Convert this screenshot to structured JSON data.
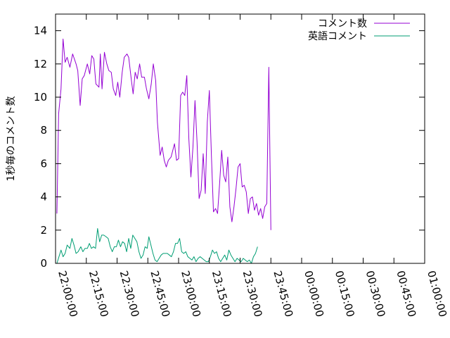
{
  "chart_data": {
    "type": "line",
    "title": "",
    "xlabel": "",
    "ylabel": "1秒毎のコメント数",
    "xlim": [
      "22:00:00",
      "01:00:00"
    ],
    "ylim": [
      0,
      15
    ],
    "x_ticks": [
      "22:00:00",
      "22:15:00",
      "22:30:00",
      "22:45:00",
      "23:00:00",
      "23:15:00",
      "23:30:00",
      "23:45:00",
      "00:00:00",
      "00:15:00",
      "00:30:00",
      "00:45:00",
      "01:00:00"
    ],
    "y_ticks": [
      0,
      2,
      4,
      6,
      8,
      10,
      12,
      14
    ],
    "grid": false,
    "legend_position": "top-right",
    "series": [
      {
        "name": "コメント数",
        "color": "#9400d3",
        "points": [
          [
            "22:00:40",
            3.0
          ],
          [
            "22:01:30",
            9.0
          ],
          [
            "22:02:40",
            10.5
          ],
          [
            "22:03:40",
            13.5
          ],
          [
            "22:04:40",
            12.1
          ],
          [
            "22:05:40",
            12.4
          ],
          [
            "22:07:00",
            11.8
          ],
          [
            "22:08:20",
            12.6
          ],
          [
            "22:10:00",
            12.0
          ],
          [
            "22:10:50",
            11.6
          ],
          [
            "22:12:00",
            9.5
          ],
          [
            "22:13:00",
            11.1
          ],
          [
            "22:14:00",
            11.3
          ],
          [
            "22:15:30",
            12.0
          ],
          [
            "22:16:40",
            11.4
          ],
          [
            "22:17:40",
            12.5
          ],
          [
            "22:18:40",
            12.3
          ],
          [
            "22:19:40",
            10.8
          ],
          [
            "22:21:10",
            10.6
          ],
          [
            "22:21:50",
            12.6
          ],
          [
            "22:22:40",
            10.5
          ],
          [
            "22:23:50",
            12.7
          ],
          [
            "22:25:00",
            12.0
          ],
          [
            "22:26:00",
            11.6
          ],
          [
            "22:27:10",
            11.5
          ],
          [
            "22:28:10",
            10.5
          ],
          [
            "22:29:20",
            10.1
          ],
          [
            "22:30:20",
            10.9
          ],
          [
            "22:31:20",
            10.0
          ],
          [
            "22:32:30",
            11.5
          ],
          [
            "22:33:30",
            12.4
          ],
          [
            "22:34:50",
            12.6
          ],
          [
            "22:35:40",
            12.4
          ],
          [
            "22:37:00",
            11.0
          ],
          [
            "22:37:50",
            10.2
          ],
          [
            "22:38:50",
            11.5
          ],
          [
            "22:39:50",
            11.1
          ],
          [
            "22:41:00",
            12.0
          ],
          [
            "22:42:00",
            11.2
          ],
          [
            "22:43:20",
            11.2
          ],
          [
            "22:44:20",
            10.5
          ],
          [
            "22:45:30",
            9.9
          ],
          [
            "22:46:40",
            10.8
          ],
          [
            "22:47:40",
            12.0
          ],
          [
            "22:48:50",
            11.0
          ],
          [
            "22:49:40",
            8.5
          ],
          [
            "22:51:00",
            6.5
          ],
          [
            "22:52:00",
            7.0
          ],
          [
            "22:53:00",
            6.2
          ],
          [
            "22:54:00",
            5.8
          ],
          [
            "22:55:00",
            6.2
          ],
          [
            "22:56:20",
            6.4
          ],
          [
            "22:58:00",
            7.2
          ],
          [
            "22:59:00",
            6.2
          ],
          [
            "23:00:00",
            6.3
          ],
          [
            "23:01:00",
            10.1
          ],
          [
            "23:02:00",
            10.3
          ],
          [
            "23:03:00",
            10.1
          ],
          [
            "23:04:00",
            11.3
          ],
          [
            "23:05:00",
            7.5
          ],
          [
            "23:06:00",
            5.2
          ],
          [
            "23:07:00",
            7.0
          ],
          [
            "23:08:00",
            9.8
          ],
          [
            "23:09:00",
            7.3
          ],
          [
            "23:10:00",
            3.9
          ],
          [
            "23:11:00",
            4.4
          ],
          [
            "23:12:00",
            6.6
          ],
          [
            "23:13:00",
            4.2
          ],
          [
            "23:14:00",
            8.5
          ],
          [
            "23:15:00",
            10.4
          ],
          [
            "23:16:00",
            6.5
          ],
          [
            "23:17:00",
            3.1
          ],
          [
            "23:18:00",
            3.3
          ],
          [
            "23:19:00",
            3.0
          ],
          [
            "23:20:00",
            4.8
          ],
          [
            "23:21:00",
            6.8
          ],
          [
            "23:22:00",
            5.3
          ],
          [
            "23:23:00",
            4.9
          ],
          [
            "23:24:00",
            6.4
          ],
          [
            "23:25:00",
            3.4
          ],
          [
            "23:26:00",
            2.5
          ],
          [
            "23:27:00",
            3.4
          ],
          [
            "23:28:00",
            4.5
          ],
          [
            "23:29:00",
            5.8
          ],
          [
            "23:30:00",
            6.0
          ],
          [
            "23:31:00",
            4.6
          ],
          [
            "23:32:00",
            4.7
          ],
          [
            "23:33:00",
            4.3
          ],
          [
            "23:34:00",
            3.0
          ],
          [
            "23:35:00",
            3.9
          ],
          [
            "23:36:00",
            4.0
          ],
          [
            "23:37:00",
            3.2
          ],
          [
            "23:38:00",
            3.6
          ],
          [
            "23:39:00",
            2.9
          ],
          [
            "23:40:00",
            3.3
          ],
          [
            "23:41:00",
            2.7
          ],
          [
            "23:42:00",
            3.4
          ],
          [
            "23:43:00",
            3.6
          ],
          [
            "23:44:00",
            11.8
          ],
          [
            "23:45:00",
            2.0
          ]
        ]
      },
      {
        "name": "英語コメント",
        "color": "#009e73",
        "points": [
          [
            "22:00:40",
            0.0
          ],
          [
            "22:01:40",
            0.4
          ],
          [
            "22:02:40",
            0.8
          ],
          [
            "22:03:40",
            0.4
          ],
          [
            "22:04:40",
            0.6
          ],
          [
            "22:05:40",
            1.1
          ],
          [
            "22:07:00",
            0.9
          ],
          [
            "22:08:00",
            1.5
          ],
          [
            "22:09:00",
            1.1
          ],
          [
            "22:10:00",
            0.6
          ],
          [
            "22:11:00",
            0.7
          ],
          [
            "22:12:20",
            1.0
          ],
          [
            "22:13:20",
            0.7
          ],
          [
            "22:14:20",
            0.9
          ],
          [
            "22:15:30",
            0.9
          ],
          [
            "22:16:30",
            1.2
          ],
          [
            "22:17:30",
            0.9
          ],
          [
            "22:18:30",
            1.0
          ],
          [
            "22:19:30",
            0.9
          ],
          [
            "22:20:30",
            2.1
          ],
          [
            "22:21:30",
            1.3
          ],
          [
            "22:22:30",
            1.7
          ],
          [
            "22:23:30",
            1.7
          ],
          [
            "22:24:40",
            1.6
          ],
          [
            "22:25:40",
            1.5
          ],
          [
            "22:26:40",
            1.0
          ],
          [
            "22:27:40",
            0.7
          ],
          [
            "22:28:40",
            1.0
          ],
          [
            "22:29:40",
            1.0
          ],
          [
            "22:30:40",
            1.4
          ],
          [
            "22:31:40",
            1.0
          ],
          [
            "22:32:40",
            1.3
          ],
          [
            "22:33:40",
            1.2
          ],
          [
            "22:34:40",
            0.7
          ],
          [
            "22:35:40",
            1.5
          ],
          [
            "22:36:40",
            0.9
          ],
          [
            "22:37:40",
            1.7
          ],
          [
            "22:38:40",
            1.5
          ],
          [
            "22:39:40",
            1.3
          ],
          [
            "22:40:40",
            0.7
          ],
          [
            "22:41:40",
            0.3
          ],
          [
            "22:42:40",
            0.5
          ],
          [
            "22:43:40",
            1.0
          ],
          [
            "22:44:40",
            0.9
          ],
          [
            "22:45:30",
            1.6
          ],
          [
            "22:46:30",
            1.1
          ],
          [
            "22:47:30",
            0.6
          ],
          [
            "22:48:30",
            0.2
          ],
          [
            "22:49:30",
            0.1
          ],
          [
            "22:50:30",
            0.3
          ],
          [
            "22:51:30",
            0.5
          ],
          [
            "22:52:30",
            0.6
          ],
          [
            "22:53:30",
            0.6
          ],
          [
            "22:54:30",
            0.6
          ],
          [
            "22:55:30",
            0.5
          ],
          [
            "22:56:30",
            0.4
          ],
          [
            "22:57:30",
            0.7
          ],
          [
            "22:58:30",
            1.2
          ],
          [
            "22:59:30",
            1.2
          ],
          [
            "23:00:30",
            1.5
          ],
          [
            "23:01:30",
            0.7
          ],
          [
            "23:02:30",
            0.6
          ],
          [
            "23:03:30",
            0.7
          ],
          [
            "23:04:30",
            0.4
          ],
          [
            "23:05:30",
            0.3
          ],
          [
            "23:06:30",
            0.2
          ],
          [
            "23:07:30",
            0.4
          ],
          [
            "23:08:30",
            0.1
          ],
          [
            "23:09:30",
            0.3
          ],
          [
            "23:10:30",
            0.4
          ],
          [
            "23:11:30",
            0.3
          ],
          [
            "23:12:30",
            0.2
          ],
          [
            "23:13:30",
            0.1
          ],
          [
            "23:14:30",
            0.1
          ],
          [
            "23:15:30",
            0.4
          ],
          [
            "23:16:30",
            0.8
          ],
          [
            "23:17:30",
            0.6
          ],
          [
            "23:18:30",
            0.7
          ],
          [
            "23:19:30",
            0.3
          ],
          [
            "23:20:30",
            0.1
          ],
          [
            "23:21:30",
            0.3
          ],
          [
            "23:22:30",
            0.5
          ],
          [
            "23:23:30",
            0.2
          ],
          [
            "23:24:30",
            0.8
          ],
          [
            "23:25:30",
            0.5
          ],
          [
            "23:26:30",
            0.3
          ],
          [
            "23:27:30",
            0.1
          ],
          [
            "23:28:30",
            0.3
          ],
          [
            "23:29:30",
            0.2
          ],
          [
            "23:30:30",
            0.1
          ],
          [
            "23:31:30",
            0.3
          ],
          [
            "23:32:30",
            0.2
          ],
          [
            "23:33:30",
            0.1
          ],
          [
            "23:34:30",
            0.2
          ],
          [
            "23:35:30",
            0.0
          ],
          [
            "23:36:30",
            0.4
          ],
          [
            "23:37:30",
            0.6
          ],
          [
            "23:38:30",
            1.0
          ]
        ]
      }
    ]
  }
}
